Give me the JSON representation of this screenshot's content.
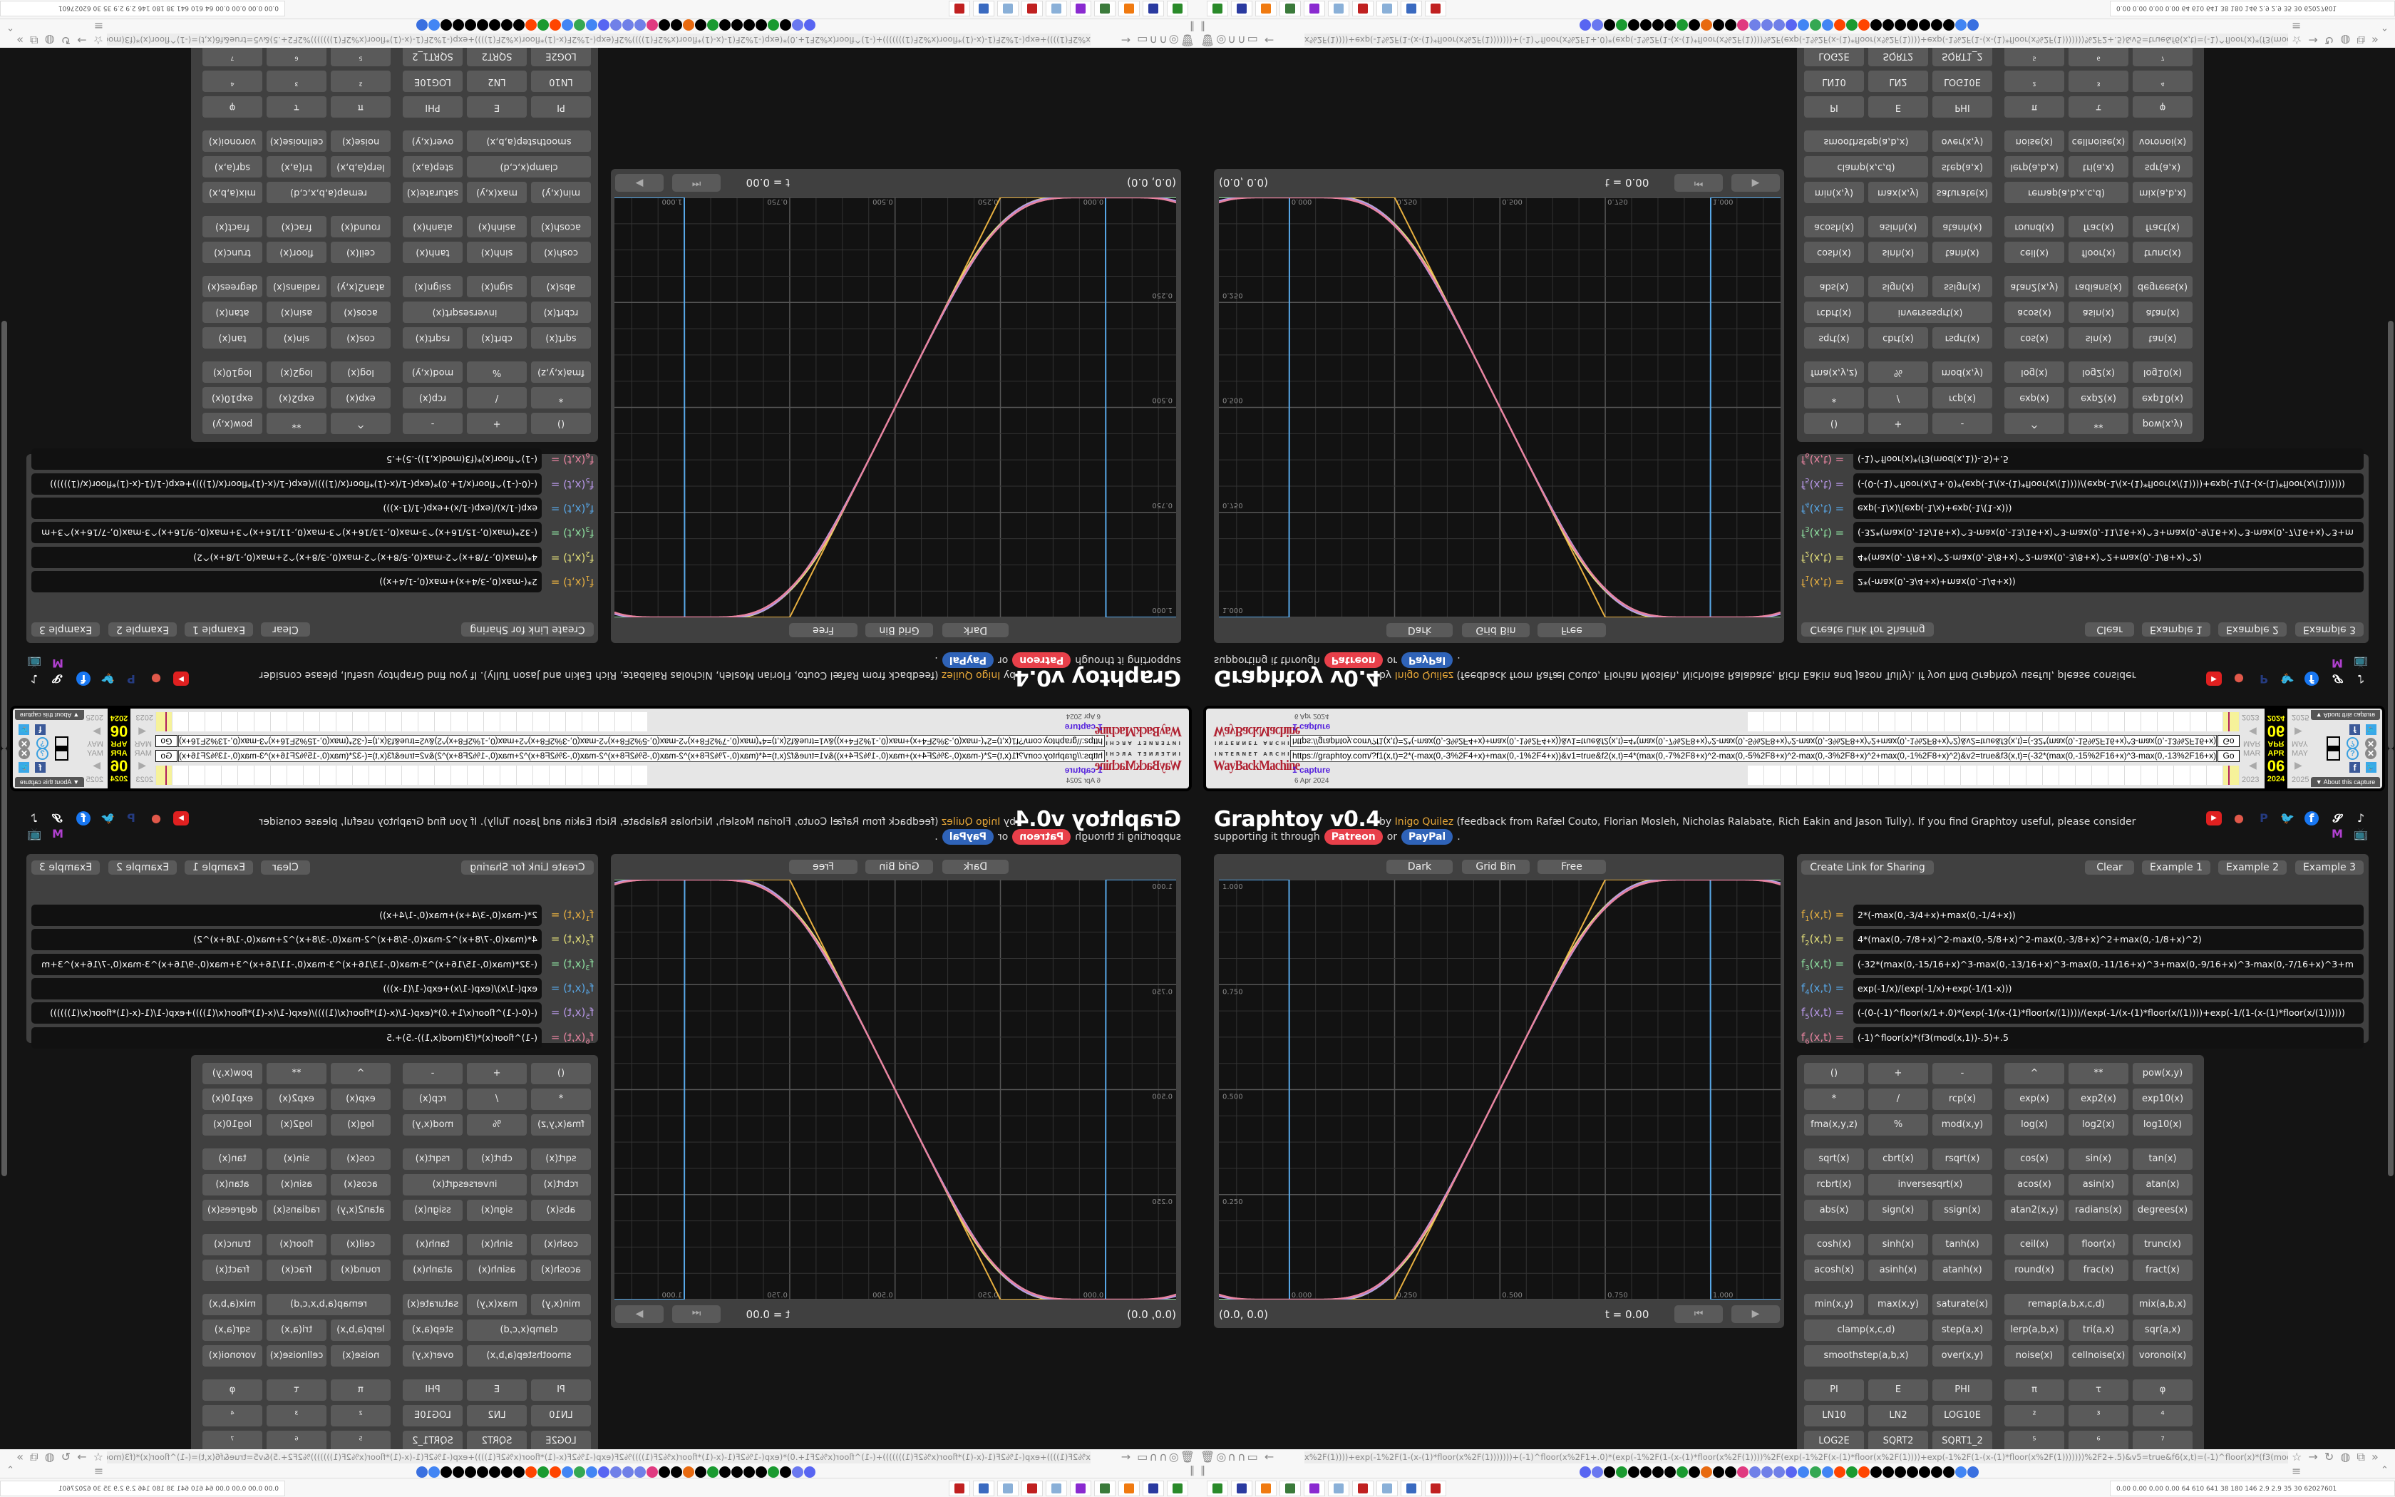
{
  "wayback": {
    "logo_top": "INTERNET ARCHIVE",
    "logo": "WayBackMachine",
    "url": "https://graphtoy.com/?f1(x,t)=2*(-max(0,-3%2F4+x)+max(0,-1%2F4+x))&v1=true&f2(x,t)=4*(max(0,-7%2F8+x)^2-max(0,-5%2F8+x)^2-max(0,-3%2F8+x)^2+max(0,-1%2F8+x)^2)&v2=true&f3(x,t)=(-32*(max(0,-15%2F16+x)^3-max(0,-13%2F16+x)^3-max(0,-11%2F16+x)^3-max(0,-9%2F16+x)^3",
    "go": "Go",
    "captures": "1 capture",
    "date": "6 Apr 2024",
    "months": [
      "MAR",
      "APR",
      "MAY"
    ],
    "day": "06",
    "years": [
      "2023",
      "2024",
      "2025"
    ],
    "about": "▼ About this capture"
  },
  "header": {
    "title": "Graphtoy v0.4",
    "by": "by",
    "author": "Inigo Quilez",
    "credits": "(feedback from Rafæl Couto, Florian Mosleh, Nicholas Ralabate, Rich Eakin and Jason Tully). If you find Graphtoy useful, please consider",
    "support": "supporting it through",
    "patreon": "Patreon",
    "or": "or",
    "paypal": "PayPal",
    "period": "."
  },
  "social": [
    {
      "icon": "youtube-icon",
      "color": "#e02020"
    },
    {
      "icon": "patreon-icon",
      "color": "#e0584a"
    },
    {
      "icon": "paypal-icon",
      "color": "#253b80"
    },
    {
      "icon": "twitter-icon",
      "color": "#1d9bf0"
    },
    {
      "icon": "facebook-icon",
      "color": "#1877f2"
    },
    {
      "icon": "threads-icon",
      "color": "#ffffff"
    },
    {
      "icon": "tiktok-icon",
      "color": "#ffffff"
    },
    {
      "icon": "medium-icon",
      "color": "#b040d0"
    },
    {
      "icon": "bilibili-icon",
      "color": "#4a90d0"
    }
  ],
  "graph": {
    "buttons": [
      "Dark",
      "Grid Bin",
      "Free"
    ],
    "coords": "(0.0, 0.0)",
    "time": "t = 0.00",
    "x_ticks": [
      "0.000",
      "0.250",
      "0.500",
      "0.750",
      "1.000"
    ],
    "y_ticks": [
      "1.000",
      "0.750",
      "0.500",
      "0.250"
    ],
    "x_range": [
      -0.167,
      1.166
    ],
    "y_range": [
      0,
      1
    ]
  },
  "functions": {
    "share": "Create Link for Sharing",
    "clear": "Clear",
    "examples": [
      "Example 1",
      "Example 2",
      "Example 3"
    ],
    "rows": [
      {
        "name": "f",
        "sub": "1",
        "args": "(x,t) =",
        "expr": "2*(-max(0,-3/4+x)+max(0,-1/4+x))",
        "color": "#e8b040"
      },
      {
        "name": "f",
        "sub": "2",
        "args": "(x,t) =",
        "expr": "4*(max(0,-7/8+x)^2-max(0,-5/8+x)^2-max(0,-3/8+x)^2+max(0,-1/8+x)^2)",
        "color": "#e4e07a"
      },
      {
        "name": "f",
        "sub": "3",
        "args": "(x,t) =",
        "expr": "(-32*(max(0,-15/16+x)^3-max(0,-13/16+x)^3-max(0,-11/16+x)^3+max(0,-9/16+x)^3-max(0,-7/16+x)^3+m",
        "color": "#8ee0a0"
      },
      {
        "name": "f",
        "sub": "4",
        "args": "(x,t) =",
        "expr": "exp(-1/x)/(exp(-1/x)+exp(-1/(1-x)))",
        "color": "#58a8e8"
      },
      {
        "name": "f",
        "sub": "5",
        "args": "(x,t) =",
        "expr": "(-(0-(-1)^floor(x/1+.0)*(exp(-1/(x-(1)*floor(x/(1))))/(exp(-1/(x-(1)*floor(x/(1))))+exp(-1/(1-(x-(1)*floor(x/(1))))))",
        "color": "#b898e8"
      },
      {
        "name": "f",
        "sub": "6",
        "args": "(x,t) =",
        "expr": "(-1)^floor(x)*(f3(mod(x,1))-.5)+.5",
        "color": "#e884a0"
      }
    ]
  },
  "keypad": {
    "groups": [
      [
        {
          "left": [
            "()",
            "+",
            "-"
          ],
          "right": [
            "^",
            "**",
            "pow(x,y)"
          ]
        },
        {
          "left": [
            "*",
            "/",
            "rcp(x)"
          ],
          "right": [
            "exp(x)",
            "exp2(x)",
            "exp10(x)"
          ]
        },
        {
          "left": [
            "fma(x,y,z)",
            "%",
            "mod(x,y)"
          ],
          "right": [
            "log(x)",
            "log2(x)",
            "log10(x)"
          ]
        }
      ],
      [
        {
          "left": [
            "sqrt(x)",
            "cbrt(x)",
            "rsqrt(x)"
          ],
          "right": [
            "cos(x)",
            "sin(x)",
            "tan(x)"
          ]
        },
        {
          "left": [
            "rcbrt(x)",
            {
              "label": "inversesqrt(x)",
              "wide": true
            }
          ],
          "right": [
            "acos(x)",
            "asin(x)",
            "atan(x)"
          ]
        },
        {
          "left": [
            "abs(x)",
            "sign(x)",
            "ssign(x)"
          ],
          "right": [
            "atan2(x,y)",
            "radians(x)",
            "degrees(x)"
          ]
        }
      ],
      [
        {
          "left": [
            "cosh(x)",
            "sinh(x)",
            "tanh(x)"
          ],
          "right": [
            "ceil(x)",
            "floor(x)",
            "trunc(x)"
          ]
        },
        {
          "left": [
            "acosh(x)",
            "asinh(x)",
            "atanh(x)"
          ],
          "right": [
            "round(x)",
            "frac(x)",
            "fract(x)"
          ]
        }
      ],
      [
        {
          "left": [
            "min(x,y)",
            "max(x,y)",
            "saturate(x)"
          ],
          "right": [
            {
              "label": "remap(a,b,x,c,d)",
              "wide": true
            },
            "mix(a,b,x)"
          ]
        },
        {
          "left": [
            {
              "label": "clamp(x,c,d)",
              "wide": true
            },
            "step(a,x)"
          ],
          "right": [
            "lerp(a,b,x)",
            "tri(a,x)",
            "sqr(a,x)"
          ]
        },
        {
          "left": [
            {
              "label": "smoothstep(a,b,x)",
              "wide": true
            },
            "over(x,y)"
          ],
          "right": [
            "noise(x)",
            "cellnoise(x)",
            "voronoi(x)"
          ]
        }
      ],
      [
        {
          "left": [
            "PI",
            "E",
            "PHI"
          ],
          "right": [
            "π",
            "τ",
            "φ"
          ]
        },
        {
          "left": [
            "LN10",
            "LN2",
            "LOG10E"
          ],
          "right": [
            "²",
            "³",
            "⁴"
          ]
        },
        {
          "left": [
            "LOG2E",
            "SQRT2",
            "SQRT1_2"
          ],
          "right": [
            "⁵",
            "⁶",
            "⁷"
          ]
        }
      ]
    ]
  },
  "browser": {
    "left_icons": "🗑◎∩∩▭ ←",
    "url": "x%2F(1))))+exp(-1%2F(1-(x-(1)*floor(x%2F(1)))))))+(-1)^floor(x%2F1+.0)*(exp(-1%2F(1-(x-(1)*floor(x%2F(1))))%2F(exp(-1%2F(x-(1)*floor(x%2F(1))))+exp(-1%2F(1-(x-(1)*floor(x%2F(1)))))))%2F2+.5)&v5=true&f6(x,t)=(-1)^floor(x)*(f3(mod(x,1))-.5)+.5&v6=true&grid=2&coords=0.5,0.5,0.6669354838709677",
    "right_icons": "☆ → ↻ ◍ ⧉ » ≡",
    "bookmarks": [
      "#5865f2",
      "#6a78f0",
      "#000000",
      "#1a9a30",
      "#000000",
      "#000000",
      "#000000",
      "#000000",
      "#1a9a30",
      "#000000",
      "#e86a10",
      "#000000",
      "#000000",
      "#e03a80",
      "#7080e8",
      "#7080e8",
      "#7080e8",
      "#5865f2",
      "#4285f4",
      "#34a853",
      "#4285f4",
      "#ff4500",
      "#1a9a30",
      "#ff4500",
      "#000000",
      "#000000",
      "#000000",
      "#000000",
      "#000000",
      "#000000",
      "#000000",
      "#4285f4",
      "#3a70e0"
    ],
    "apps": [
      "#2a8a2a",
      "#2a3aa0",
      "#f07a10",
      "#3a7a3a",
      "#8a2ad0",
      "#8ab0d8",
      "#c02020",
      "#8ab0d8",
      "#3a6ac0",
      "#c02020"
    ],
    "status": "0.00 0.00 0.00 0.00   64   610   641   38   180   146   2.9   2.9   35   30   62027601"
  }
}
